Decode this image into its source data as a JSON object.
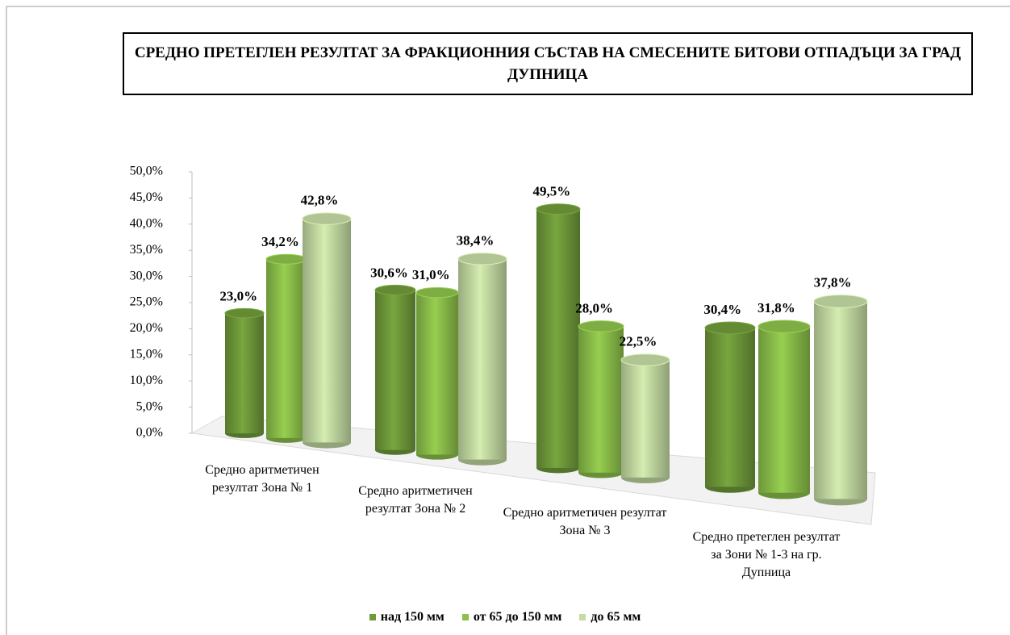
{
  "chart_data": {
    "type": "bar3d",
    "title": "СРЕДНО ПРЕТЕГЛЕН РЕЗУЛТАТ ЗА ФРАКЦИОННИЯ СЪСТАВ НА СМЕСЕНИТЕ БИТОВИ ОТПАДЪЦИ ЗА ГРАД ДУПНИЦА",
    "categories": [
      "Средно аритметичен резултат  Зона № 1",
      "Средно аритметичен резултат  Зона № 2",
      "Средно аритметичен резултат  Зона № 3",
      "Средно претеглен резултат   за Зони № 1-3 на гр. Дупница"
    ],
    "series": [
      {
        "name": "над 150 мм",
        "color": "#6f9a3a",
        "values": [
          23.0,
          30.6,
          49.5,
          30.4
        ],
        "value_labels": [
          "23,0%",
          "30,6%",
          "49,5%",
          "30,4%"
        ]
      },
      {
        "name": "от 65 до 150 мм",
        "color": "#8cc04a",
        "values": [
          34.2,
          31.0,
          28.0,
          31.8
        ],
        "value_labels": [
          "34,2%",
          "31,0%",
          "28,0%",
          "31,8%"
        ]
      },
      {
        "name": "до 65 мм",
        "color": "#c4dba3",
        "values": [
          42.8,
          38.4,
          22.5,
          37.8
        ],
        "value_labels": [
          "42,8%",
          "38,4%",
          "22,5%",
          "37,8%"
        ]
      }
    ],
    "ylim": [
      0,
      50
    ],
    "yticks": [
      {
        "value": 0,
        "label": "0,0%"
      },
      {
        "value": 5,
        "label": "5,0%"
      },
      {
        "value": 10,
        "label": "10,0%"
      },
      {
        "value": 15,
        "label": "15,0%"
      },
      {
        "value": 20,
        "label": "20,0%"
      },
      {
        "value": 25,
        "label": "25,0%"
      },
      {
        "value": 30,
        "label": "30,0%"
      },
      {
        "value": 35,
        "label": "35,0%"
      },
      {
        "value": 40,
        "label": "40,0%"
      },
      {
        "value": 45,
        "label": "45,0%"
      },
      {
        "value": 50,
        "label": "50,0%"
      }
    ],
    "legend": "bottom"
  }
}
